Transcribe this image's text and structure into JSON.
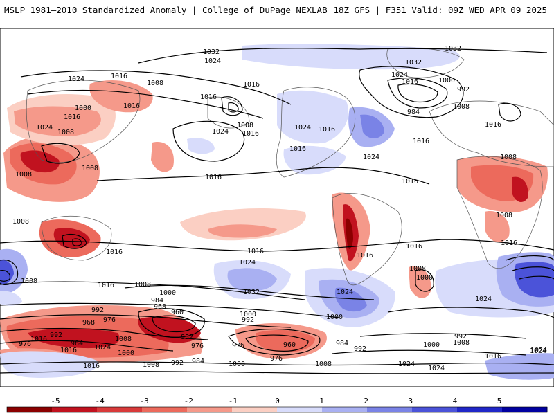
{
  "header": {
    "title_left": "MSLP 1981–2010 Standardized Anomaly | College of DuPage NEXLAB",
    "title_right": "18Z GFS | F351 Valid: 09Z WED APR 09 2025"
  },
  "colorbar": {
    "ticks": [
      "-5",
      "-4",
      "-3",
      "-2",
      "-1",
      "0",
      "1",
      "2",
      "3",
      "4",
      "5"
    ],
    "colors_negative": [
      "#8b0000",
      "#c1121f",
      "#d83a3a",
      "#ec6a5c",
      "#f5998a",
      "#fbcfc3"
    ],
    "colors_positive": [
      "#d8dcfb",
      "#a9b0f2",
      "#7a83e6",
      "#4b53d9",
      "#2027c8",
      "#0000a0"
    ]
  },
  "isobar_labels": [
    {
      "text": "1032"
    },
    {
      "text": "1032"
    },
    {
      "text": "1024"
    },
    {
      "text": "1032"
    },
    {
      "text": "1024"
    },
    {
      "text": "1016"
    },
    {
      "text": "1024"
    },
    {
      "text": "1008"
    },
    {
      "text": "1016"
    },
    {
      "text": "1016"
    },
    {
      "text": "1000"
    },
    {
      "text": "992"
    },
    {
      "text": "1000"
    },
    {
      "text": "1016"
    },
    {
      "text": "1016"
    },
    {
      "text": "1008"
    },
    {
      "text": "1024"
    },
    {
      "text": "1008"
    },
    {
      "text": "1016"
    },
    {
      "text": "1016"
    },
    {
      "text": "1024"
    },
    {
      "text": "1008"
    },
    {
      "text": "1024"
    },
    {
      "text": "1016"
    },
    {
      "text": "984"
    },
    {
      "text": "1016"
    },
    {
      "text": "1008"
    },
    {
      "text": "1016"
    },
    {
      "text": "1024"
    },
    {
      "text": "1016"
    },
    {
      "text": "1016"
    },
    {
      "text": "1008"
    },
    {
      "text": "1008"
    },
    {
      "text": "1008"
    },
    {
      "text": "1016"
    },
    {
      "text": "1016"
    },
    {
      "text": "1016"
    },
    {
      "text": "1016"
    },
    {
      "text": "1016"
    },
    {
      "text": "1008"
    },
    {
      "text": "1024"
    },
    {
      "text": "1008"
    },
    {
      "text": "1000"
    },
    {
      "text": "1016"
    },
    {
      "text": "1008"
    },
    {
      "text": "1000"
    },
    {
      "text": "1032"
    },
    {
      "text": "1008"
    },
    {
      "text": "1024"
    },
    {
      "text": "1024"
    },
    {
      "text": "1016"
    },
    {
      "text": "984"
    },
    {
      "text": "968"
    },
    {
      "text": "960"
    },
    {
      "text": "992"
    },
    {
      "text": "1000"
    },
    {
      "text": "992"
    },
    {
      "text": "968"
    },
    {
      "text": "976"
    },
    {
      "text": "992"
    },
    {
      "text": "976"
    },
    {
      "text": "984"
    },
    {
      "text": "1024"
    },
    {
      "text": "1008"
    },
    {
      "text": "952"
    },
    {
      "text": "1016"
    },
    {
      "text": "1000"
    },
    {
      "text": "976"
    },
    {
      "text": "976"
    },
    {
      "text": "960"
    },
    {
      "text": "984"
    },
    {
      "text": "992"
    },
    {
      "text": "1000"
    },
    {
      "text": "992"
    },
    {
      "text": "1008"
    },
    {
      "text": "1016"
    },
    {
      "text": "1024"
    },
    {
      "text": "1016"
    },
    {
      "text": "1008"
    },
    {
      "text": "992"
    },
    {
      "text": "984"
    },
    {
      "text": "1000"
    },
    {
      "text": "976"
    },
    {
      "text": "1008"
    },
    {
      "text": "1024"
    },
    {
      "text": "1024"
    },
    {
      "text": "1024"
    },
    {
      "text": "1016"
    },
    {
      "text": "1000"
    }
  ]
}
